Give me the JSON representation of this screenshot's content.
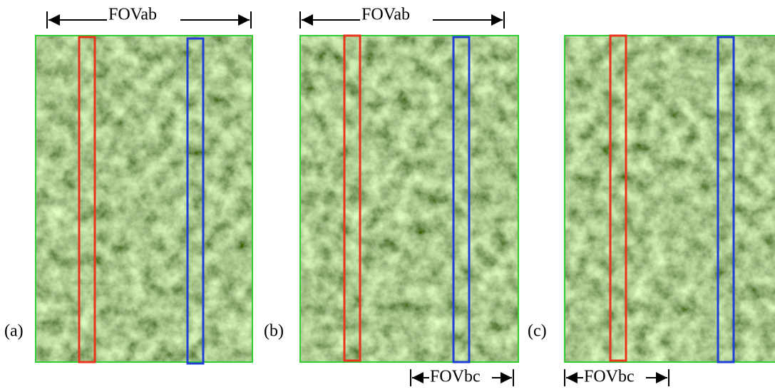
{
  "panels": [
    {
      "label": "(a)"
    },
    {
      "label": "(b)"
    },
    {
      "label": "(c)"
    }
  ],
  "dimensions": [
    {
      "label": "FOVab"
    },
    {
      "label": "FOVab"
    },
    {
      "label": "FOVbc"
    },
    {
      "label": "FOVbc"
    }
  ]
}
